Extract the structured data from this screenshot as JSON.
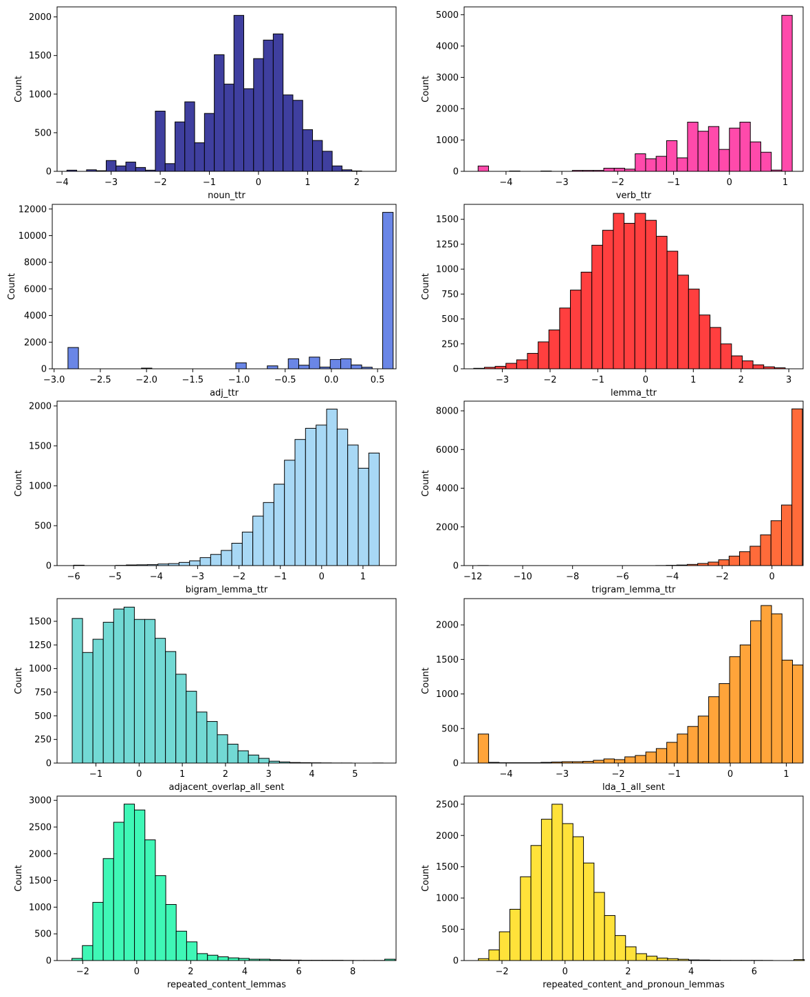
{
  "chart_data": [
    {
      "type": "bar",
      "subtype": "histogram",
      "color": "#3f3f9f",
      "xlabel": "noun_ttr",
      "ylabel": "Count",
      "xlim": [
        -4.1,
        2.8
      ],
      "ylim": [
        0,
        2130
      ],
      "xticks": [
        -4,
        -3,
        -2,
        -1,
        0,
        1,
        2
      ],
      "yticks": [
        0,
        500,
        1000,
        1500,
        2000
      ],
      "x_start": -3.9,
      "bin_width": 0.2,
      "values": [
        15,
        0,
        20,
        8,
        140,
        70,
        120,
        50,
        15,
        780,
        100,
        640,
        900,
        370,
        750,
        1510,
        1130,
        2020,
        1070,
        1460,
        1700,
        1780,
        990,
        920,
        540,
        400,
        260,
        70,
        20,
        5
      ]
    },
    {
      "type": "bar",
      "subtype": "histogram",
      "color": "#ff4aab",
      "xlabel": "verb_ttr",
      "ylabel": "Count",
      "xlim": [
        -4.75,
        1.32
      ],
      "ylim": [
        0,
        5250
      ],
      "xticks": [
        -4,
        -3,
        -2,
        -1,
        0,
        1
      ],
      "yticks": [
        0,
        1000,
        2000,
        3000,
        4000,
        5000
      ],
      "x_start": -4.5,
      "bin_width": 0.1875,
      "values": [
        170,
        0,
        0,
        10,
        0,
        0,
        10,
        0,
        0,
        30,
        30,
        30,
        100,
        100,
        70,
        560,
        400,
        480,
        980,
        430,
        1570,
        1280,
        1430,
        700,
        1380,
        1570,
        940,
        610,
        40,
        4980
      ]
    },
    {
      "type": "bar",
      "subtype": "histogram",
      "color": "#6a86e6",
      "xlabel": "adj_ttr",
      "ylabel": "Count",
      "xlim": [
        -3.02,
        0.7
      ],
      "ylim": [
        0,
        12350
      ],
      "xticks": [
        -3.0,
        -2.5,
        -2.0,
        -1.5,
        -1.0,
        -0.5,
        0.0,
        0.5
      ],
      "ytick_values": [
        0,
        2000,
        4000,
        6000,
        8000,
        10000,
        12000
      ],
      "x_start": -2.85,
      "bin_width": 0.1135,
      "values": [
        1600,
        0,
        0,
        0,
        0,
        0,
        0,
        50,
        0,
        0,
        0,
        0,
        0,
        0,
        0,
        0,
        450,
        0,
        0,
        220,
        0,
        750,
        270,
        880,
        130,
        700,
        750,
        290,
        120,
        0,
        11750
      ]
    },
    {
      "type": "bar",
      "subtype": "histogram",
      "color": "#ff3f3f",
      "xlabel": "lemma_ttr",
      "ylabel": "Count",
      "xlim": [
        -3.8,
        3.3
      ],
      "ylim": [
        0,
        1650
      ],
      "xticks": [
        -3,
        -2,
        -1,
        0,
        1,
        2,
        3
      ],
      "yticks": [
        0,
        250,
        500,
        750,
        1000,
        1250,
        1500
      ],
      "x_start": -3.6,
      "bin_width": 0.225,
      "values": [
        5,
        15,
        25,
        55,
        90,
        155,
        270,
        390,
        610,
        790,
        970,
        1240,
        1390,
        1560,
        1460,
        1560,
        1490,
        1330,
        1180,
        940,
        800,
        540,
        415,
        250,
        130,
        80,
        40,
        20,
        10
      ]
    },
    {
      "type": "bar",
      "subtype": "histogram",
      "color": "#a8d8f5",
      "xlabel": "bigram_lemma_ttr",
      "ylabel": "Count",
      "xlim": [
        -6.4,
        1.8
      ],
      "ylim": [
        0,
        2060
      ],
      "xticks": [
        -6,
        -5,
        -4,
        -3,
        -2,
        -1,
        0,
        1
      ],
      "yticks": [
        0,
        500,
        1000,
        1500,
        2000
      ],
      "x_start": -6.0,
      "bin_width": 0.255,
      "values": [
        5,
        0,
        0,
        0,
        3,
        8,
        10,
        12,
        20,
        25,
        40,
        60,
        100,
        140,
        190,
        280,
        420,
        620,
        790,
        1020,
        1320,
        1580,
        1720,
        1760,
        1960,
        1710,
        1510,
        1220,
        1410
      ]
    },
    {
      "type": "bar",
      "subtype": "histogram",
      "color": "#ff6b3a",
      "xlabel": "trigram_lemma_ttr",
      "ylabel": "Count",
      "xlim": [
        -12.35,
        1.25
      ],
      "ylim": [
        0,
        8500
      ],
      "xticks": [
        -12,
        -10,
        -8,
        -6,
        -4,
        -2,
        0
      ],
      "yticks": [
        0,
        2000,
        4000,
        6000,
        8000
      ],
      "x_start": -11.8,
      "bin_width": 0.42,
      "values": [
        5,
        0,
        0,
        0,
        0,
        0,
        0,
        0,
        0,
        0,
        0,
        0,
        0,
        0,
        0,
        0,
        0,
        5,
        15,
        30,
        60,
        110,
        180,
        300,
        490,
        720,
        1000,
        1590,
        2320,
        3130,
        8100
      ]
    },
    {
      "type": "bar",
      "subtype": "histogram",
      "color": "#72d9d4",
      "xlabel": "adjacent_overlap_all_sent",
      "ylabel": "Count",
      "xlim": [
        -1.9,
        5.95
      ],
      "ylim": [
        0,
        1740
      ],
      "xticks": [
        -1,
        0,
        1,
        2,
        3,
        4,
        5
      ],
      "yticks": [
        0,
        250,
        500,
        750,
        1000,
        1250,
        1500
      ],
      "x_start": -1.55,
      "bin_width": 0.24,
      "values": [
        1530,
        1170,
        1310,
        1490,
        1630,
        1650,
        1520,
        1520,
        1320,
        1180,
        940,
        760,
        540,
        440,
        300,
        200,
        130,
        85,
        50,
        20,
        12,
        6,
        4,
        3,
        2,
        1,
        1,
        0,
        0,
        1
      ]
    },
    {
      "type": "bar",
      "subtype": "histogram",
      "color": "#ffa43a",
      "xlabel": "lda_1_all_sent",
      "ylabel": "Count",
      "xlim": [
        -4.75,
        1.3
      ],
      "ylim": [
        0,
        2380
      ],
      "xticks": [
        -4,
        -3,
        -2,
        -1,
        0,
        1
      ],
      "yticks": [
        0,
        500,
        1000,
        1500,
        2000
      ],
      "x_start": -4.5,
      "bin_width": 0.187,
      "values": [
        420,
        10,
        5,
        5,
        5,
        5,
        10,
        15,
        20,
        20,
        25,
        40,
        60,
        50,
        90,
        110,
        160,
        210,
        300,
        420,
        530,
        680,
        960,
        1150,
        1540,
        1710,
        2060,
        2280,
        2160,
        1490,
        1420
      ]
    },
    {
      "type": "bar",
      "subtype": "histogram",
      "color": "#3ff7b6",
      "xlabel": "repeated_content_lemmas",
      "ylabel": "Count",
      "xlim": [
        -2.95,
        9.6
      ],
      "ylim": [
        0,
        3080
      ],
      "xticks": [
        -2,
        0,
        2,
        4,
        6,
        8
      ],
      "yticks": [
        0,
        500,
        1000,
        1500,
        2000,
        2500,
        3000
      ],
      "x_start": -2.4,
      "bin_width": 0.386,
      "values": [
        40,
        280,
        1090,
        1910,
        2590,
        2930,
        2820,
        2260,
        1590,
        1050,
        550,
        350,
        130,
        100,
        70,
        50,
        40,
        25,
        25,
        15,
        10,
        8,
        5,
        5,
        5,
        5,
        3,
        2,
        2,
        2,
        25
      ]
    },
    {
      "type": "bar",
      "subtype": "histogram",
      "color": "#ffe23a",
      "xlabel": "repeated_content_and_pronoun_lemmas",
      "ylabel": "Count",
      "xlim": [
        -3.2,
        7.55
      ],
      "ylim": [
        0,
        2630
      ],
      "xticks": [
        -2,
        0,
        2,
        4,
        6
      ],
      "yticks": [
        0,
        500,
        1000,
        1500,
        2000,
        2500
      ],
      "x_start": -2.75,
      "bin_width": 0.3335,
      "values": [
        30,
        170,
        460,
        820,
        1340,
        1840,
        2260,
        2500,
        2190,
        1980,
        1560,
        1090,
        720,
        400,
        220,
        110,
        70,
        40,
        30,
        20,
        10,
        8,
        5,
        3,
        3,
        3,
        3,
        2,
        0,
        0,
        15
      ]
    }
  ]
}
